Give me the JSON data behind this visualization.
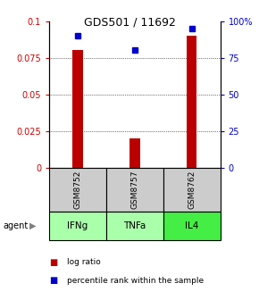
{
  "title": "GDS501 / 11692",
  "samples": [
    "GSM8752",
    "GSM8757",
    "GSM8762"
  ],
  "agents": [
    "IFNg",
    "TNFa",
    "IL4"
  ],
  "log_ratios": [
    0.08,
    0.02,
    0.09
  ],
  "percentile_ranks": [
    90,
    80,
    95
  ],
  "ylim_left": [
    0,
    0.1
  ],
  "ylim_right": [
    0,
    100
  ],
  "yticks_left": [
    0,
    0.025,
    0.05,
    0.075,
    0.1
  ],
  "ytick_labels_left": [
    "0",
    "0.025",
    "0.05",
    "0.075",
    "0.1"
  ],
  "yticks_right": [
    0,
    25,
    50,
    75,
    100
  ],
  "ytick_labels_right": [
    "0",
    "25",
    "50",
    "75",
    "100%"
  ],
  "bar_color": "#bb0000",
  "square_color": "#0000cc",
  "agent_colors": [
    "#aaffaa",
    "#aaffaa",
    "#44ee44"
  ],
  "sample_bg_color": "#cccccc",
  "bar_width": 0.18
}
